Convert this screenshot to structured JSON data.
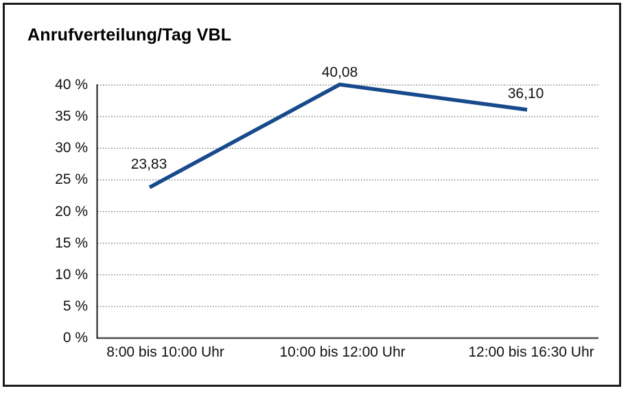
{
  "chart_data": {
    "type": "line",
    "title": "Anrufverteilung/Tag VBL",
    "categories": [
      "8:00 bis 10:00 Uhr",
      "10:00 bis 12:00 Uhr",
      "12:00 bis 16:30 Uhr"
    ],
    "values": [
      23.83,
      40.08,
      36.1
    ],
    "point_labels": [
      "23,83",
      "40,08",
      "36,10"
    ],
    "y_tick_values": [
      0,
      5,
      10,
      15,
      20,
      25,
      30,
      35,
      40
    ],
    "y_tick_labels": [
      "0 %",
      "5 %",
      "10 %",
      "15 %",
      "20 %",
      "25 %",
      "30 %",
      "35 %",
      "40 %"
    ],
    "ylim": [
      0,
      40
    ],
    "xlabel": "",
    "ylabel": "",
    "legend": "none",
    "grid": "horizontal-dotted",
    "line_color": "#174a8c",
    "gridline_color": "#767676",
    "axis_color": "#1a1a1a",
    "baseline_color": "#4d4d4d"
  }
}
